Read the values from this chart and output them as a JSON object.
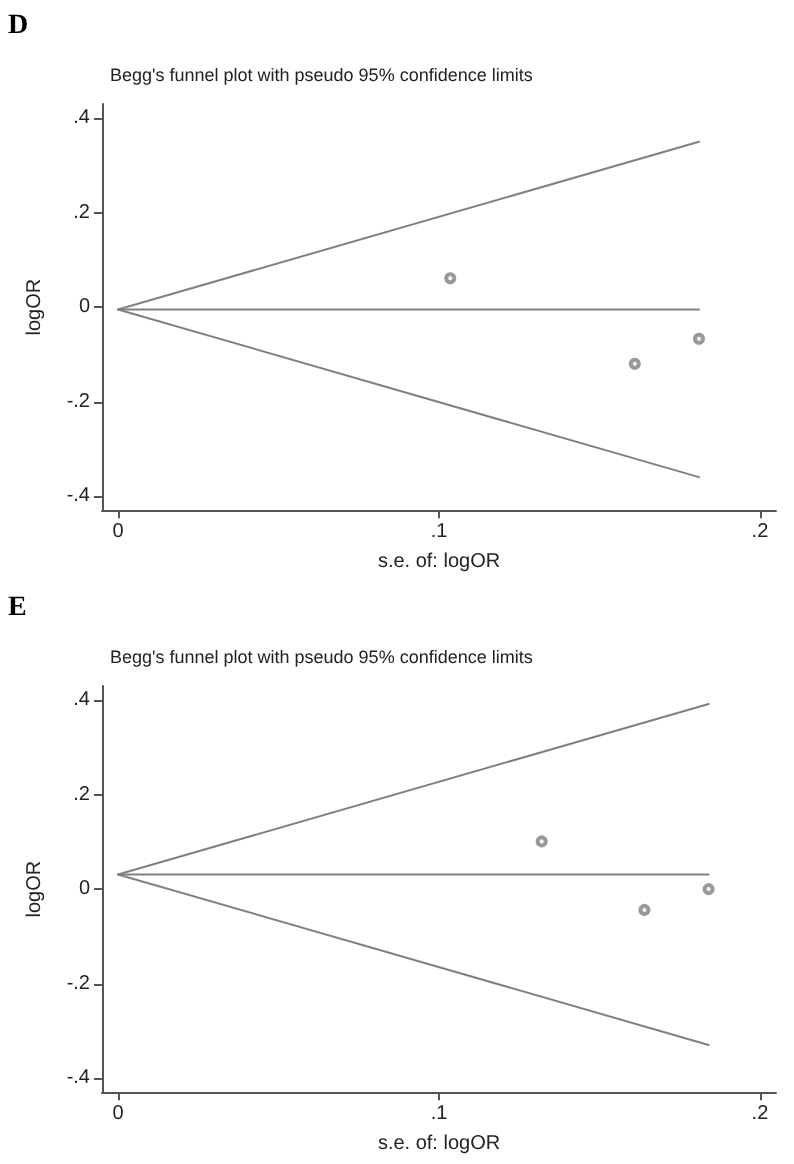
{
  "chart_data": [
    {
      "type": "scatter",
      "title": "Begg's funnel plot with pseudo 95% confidence limits",
      "xlabel": "s.e. of: logOR",
      "ylabel": "logOR",
      "annotations": [
        "D"
      ],
      "xlim": [
        -0.005,
        0.205
      ],
      "xticks": [
        {
          "value": 0,
          "label": "0"
        },
        {
          "value": 0.1,
          "label": ".1"
        },
        {
          "value": 0.2,
          "label": ".2"
        }
      ],
      "ylim": [
        -0.43,
        0.43
      ],
      "yticks": [
        {
          "value": -0.4,
          "label": "-.4"
        },
        {
          "value": -0.2,
          "label": "-.2"
        },
        {
          "value": 0,
          "label": "0"
        },
        {
          "value": 0.2,
          "label": ".2"
        },
        {
          "value": 0.4,
          "label": ".4"
        }
      ],
      "series": [
        {
          "type": "line",
          "color": "#808080",
          "marker": "none",
          "line_style": "solid",
          "x": [
            0,
            0.181
          ],
          "values": [
            -0.005,
            0.35
          ]
        },
        {
          "type": "line",
          "color": "#808080",
          "marker": "none",
          "line_style": "solid",
          "x": [
            0,
            0.181
          ],
          "values": [
            -0.005,
            -0.005
          ]
        },
        {
          "type": "line",
          "color": "#808080",
          "marker": "none",
          "line_style": "solid",
          "x": [
            0,
            0.181
          ],
          "values": [
            -0.005,
            -0.36
          ]
        },
        {
          "color": "#808080",
          "marker": "circle",
          "x": [
            0.1035,
            0.161,
            0.181
          ],
          "values": [
            0.061,
            -0.12,
            -0.067
          ]
        }
      ]
    },
    {
      "type": "scatter",
      "title": "Begg's funnel plot with pseudo 95% confidence limits",
      "xlabel": "s.e. of: logOR",
      "ylabel": "logOR",
      "annotations": [
        "E"
      ],
      "xlim": [
        -0.005,
        0.205
      ],
      "xticks": [
        {
          "value": 0,
          "label": "0"
        },
        {
          "value": 0.1,
          "label": ".1"
        },
        {
          "value": 0.2,
          "label": ".2"
        }
      ],
      "ylim": [
        -0.43,
        0.43
      ],
      "yticks": [
        {
          "value": -0.4,
          "label": "-.4"
        },
        {
          "value": -0.2,
          "label": "-.2"
        },
        {
          "value": 0,
          "label": "0"
        },
        {
          "value": 0.2,
          "label": ".2"
        },
        {
          "value": 0.4,
          "label": ".4"
        }
      ],
      "series": [
        {
          "type": "line",
          "color": "#808080",
          "marker": "none",
          "line_style": "solid",
          "x": [
            0,
            0.184
          ],
          "values": [
            0.031,
            0.392
          ]
        },
        {
          "type": "line",
          "color": "#808080",
          "marker": "none",
          "line_style": "solid",
          "x": [
            0,
            0.184
          ],
          "values": [
            0.031,
            0.031
          ]
        },
        {
          "type": "line",
          "color": "#808080",
          "marker": "none",
          "line_style": "solid",
          "x": [
            0,
            0.184
          ],
          "values": [
            0.031,
            -0.33
          ]
        },
        {
          "color": "#808080",
          "marker": "circle",
          "x": [
            0.132,
            0.164,
            0.184
          ],
          "values": [
            0.101,
            -0.044,
            0.0
          ]
        }
      ]
    }
  ]
}
